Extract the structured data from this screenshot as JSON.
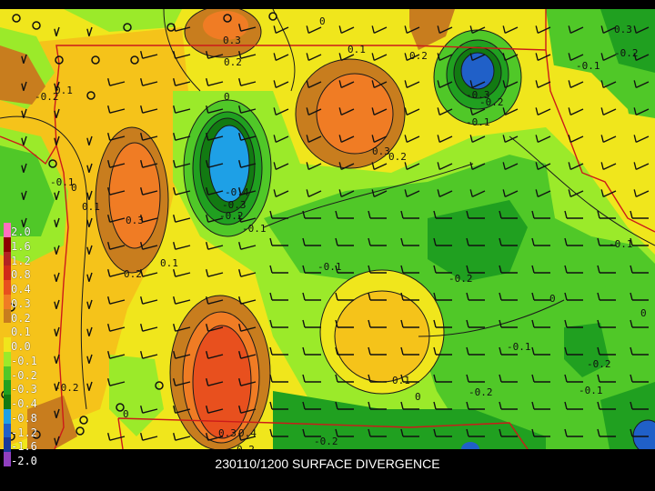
{
  "caption": "230110/1200 SURFACE DIVERGENCE",
  "colors": {
    "background": "#000000",
    "border": "#cc1a1a",
    "contour": "#1a1a1a",
    "caption": "#ffffff"
  },
  "legend": {
    "levels": [
      "2.0",
      "1.6",
      "1.2",
      "0.8",
      "0.4",
      "0.3",
      "0.2",
      "0.1",
      "0.0",
      "-0.1",
      "-0.2",
      "-0.3",
      "-0.4",
      "-0.8",
      "-1.2",
      "-1.6",
      "-2.0"
    ],
    "colors": [
      "#ff6fbf",
      "#8b0000",
      "#b22222",
      "#d02a18",
      "#e8501e",
      "#f07c24",
      "#c87d1e",
      "#f5c31a",
      "#f0e61c",
      "#9bea2a",
      "#50c828",
      "#20a020",
      "#127a12",
      "#1ea0e6",
      "#2060c8",
      "#1a3a9a",
      "#9040c0"
    ]
  },
  "contour_labels": [
    {
      "text": "0.3",
      "pos": [
        245,
        38
      ]
    },
    {
      "text": "0.2",
      "pos": [
        246,
        62
      ]
    },
    {
      "text": "0",
      "pos": [
        351,
        17
      ]
    },
    {
      "text": "0.1",
      "pos": [
        382,
        48
      ]
    },
    {
      "text": "0.2",
      "pos": [
        450,
        55
      ]
    },
    {
      "text": "0.3",
      "pos": [
        675,
        26
      ]
    },
    {
      "text": "-0.2",
      "pos": [
        675,
        52
      ]
    },
    {
      "text": "-0.1",
      "pos": [
        633,
        66
      ]
    },
    {
      "text": "-0.2",
      "pos": [
        38,
        100
      ]
    },
    {
      "text": "0.1",
      "pos": [
        60,
        93
      ]
    },
    {
      "text": "0",
      "pos": [
        246,
        100
      ]
    },
    {
      "text": "-0.3",
      "pos": [
        512,
        98
      ]
    },
    {
      "text": "-0.2",
      "pos": [
        527,
        106
      ]
    },
    {
      "text": "-0.1",
      "pos": [
        512,
        128
      ]
    },
    {
      "text": "0.3",
      "pos": [
        409,
        160
      ]
    },
    {
      "text": "0.2",
      "pos": [
        427,
        166
      ]
    },
    {
      "text": "-0.1",
      "pos": [
        55,
        194
      ]
    },
    {
      "text": "0",
      "pos": [
        78,
        200
      ]
    },
    {
      "text": "0.1",
      "pos": [
        90,
        221
      ]
    },
    {
      "text": "-0.4",
      "pos": [
        247,
        205
      ]
    },
    {
      "text": "-0.3",
      "pos": [
        244,
        219
      ]
    },
    {
      "text": "-0.2",
      "pos": [
        241,
        231
      ]
    },
    {
      "text": "-0.1",
      "pos": [
        266,
        245
      ]
    },
    {
      "text": "0.3",
      "pos": [
        138,
        236
      ]
    },
    {
      "text": "-0.1",
      "pos": [
        669,
        262
      ]
    },
    {
      "text": "0.1",
      "pos": [
        176,
        283
      ]
    },
    {
      "text": "-0.1",
      "pos": [
        349,
        287
      ]
    },
    {
      "text": "0.2",
      "pos": [
        136,
        295
      ]
    },
    {
      "text": "-0.2",
      "pos": [
        493,
        300
      ]
    },
    {
      "text": "0",
      "pos": [
        604,
        322
      ]
    },
    {
      "text": "0",
      "pos": [
        704,
        338
      ]
    },
    {
      "text": "-0.1",
      "pos": [
        557,
        375
      ]
    },
    {
      "text": "-0.2",
      "pos": [
        645,
        394
      ]
    },
    {
      "text": "-0.2",
      "pos": [
        60,
        420
      ]
    },
    {
      "text": "0.1",
      "pos": [
        431,
        412
      ]
    },
    {
      "text": "0",
      "pos": [
        456,
        430
      ]
    },
    {
      "text": "-0.2",
      "pos": [
        515,
        425
      ]
    },
    {
      "text": "-0.1",
      "pos": [
        636,
        423
      ]
    },
    {
      "text": "0",
      "pos": [
        135,
        449
      ]
    },
    {
      "text": "0.3",
      "pos": [
        240,
        470
      ]
    },
    {
      "text": "0.4",
      "pos": [
        262,
        470
      ]
    },
    {
      "text": "-0.2",
      "pos": [
        345,
        479
      ]
    },
    {
      "text": "0.2",
      "pos": [
        260,
        488
      ]
    }
  ]
}
